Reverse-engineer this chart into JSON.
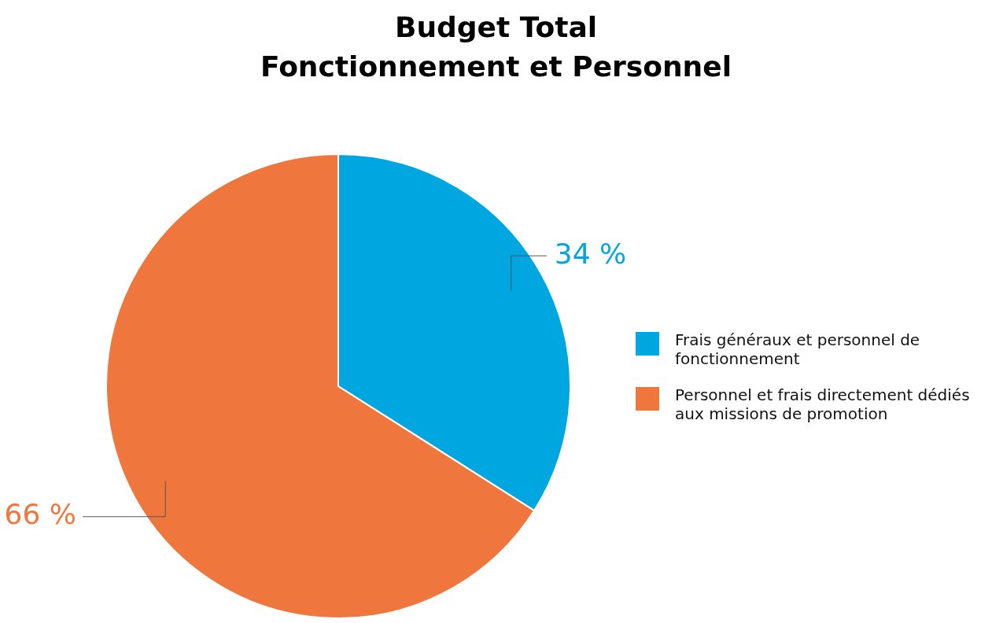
{
  "chart_data": {
    "type": "pie",
    "title": "Budget Total\nFonctionnement et Personnel",
    "categories": [
      "Frais généraux et personnel de fonctionnement",
      "Personnel et frais directement dédiés aux missions de promotion"
    ],
    "values": [
      34,
      66
    ],
    "value_labels": [
      "34 %",
      "66 %"
    ],
    "colors": [
      "#00a6e0",
      "#ef763c"
    ],
    "legend": "right"
  }
}
